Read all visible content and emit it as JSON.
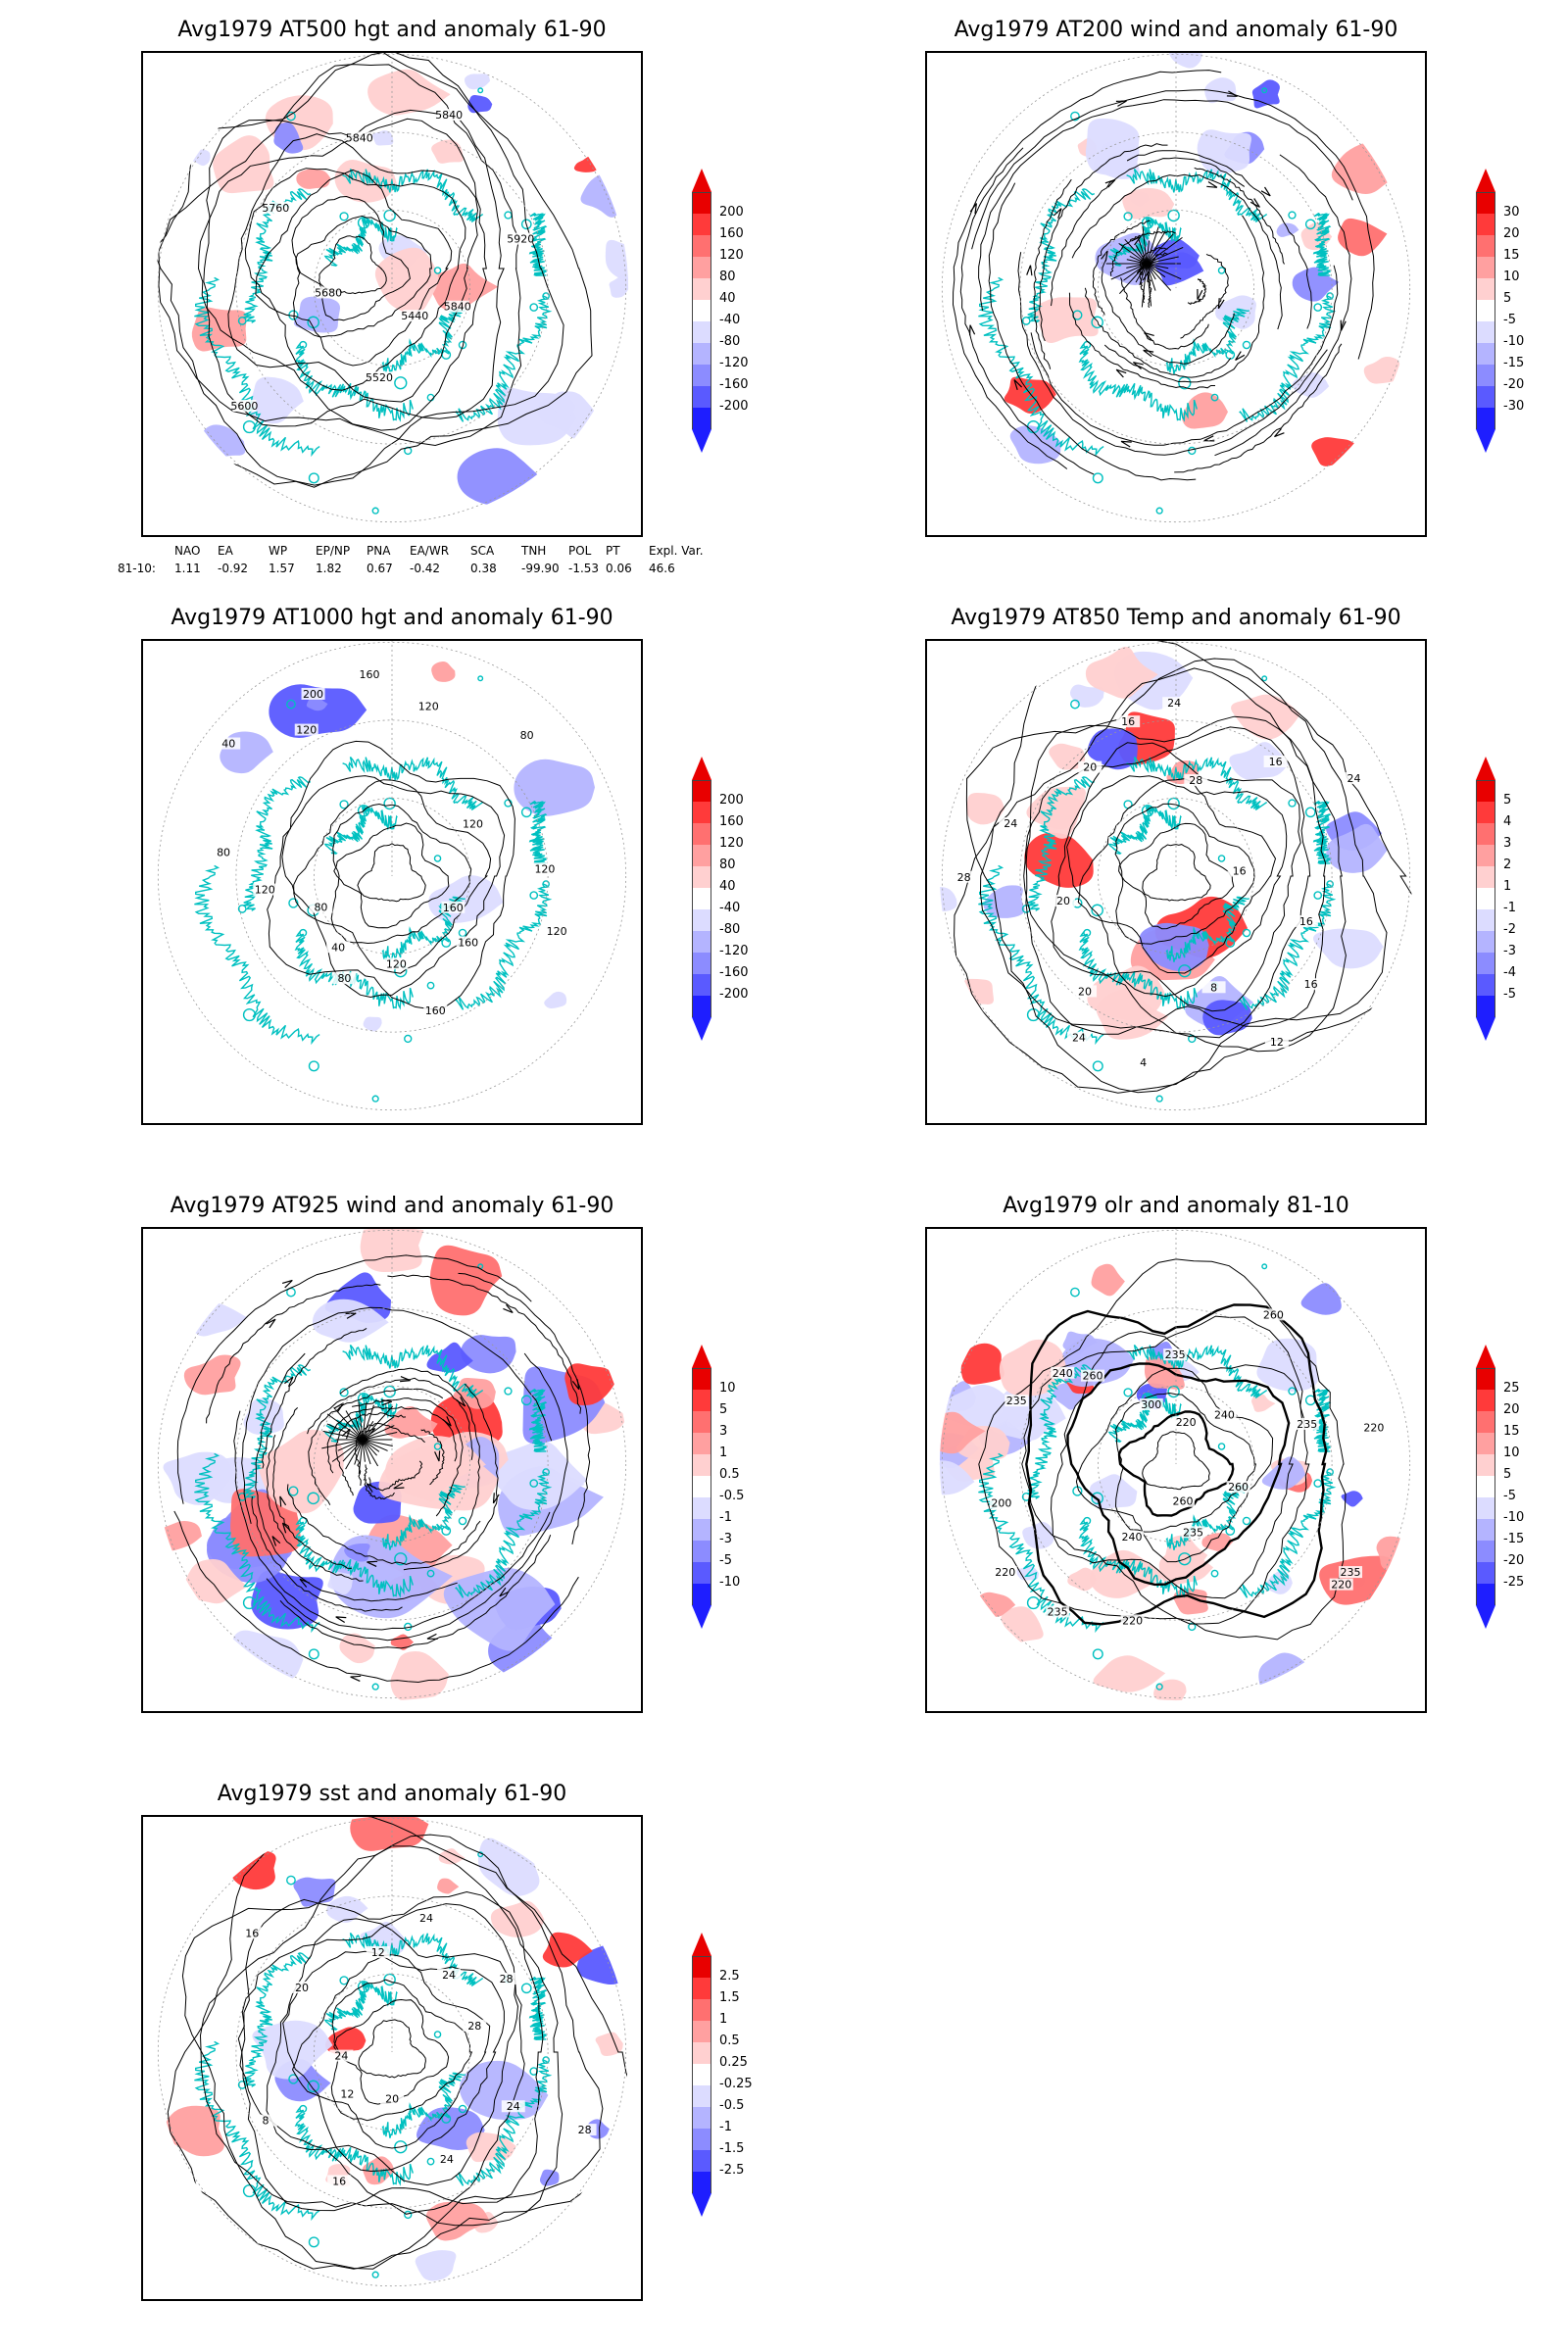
{
  "palette": {
    "coast": "#00c0c0",
    "contour": "#000000",
    "pos": [
      "#ffd0d0",
      "#ffa0a0",
      "#ff7070",
      "#ff3a3a",
      "#e80000"
    ],
    "neg": [
      "#dcdcff",
      "#b4b4ff",
      "#8c8cff",
      "#5a5aff",
      "#1e1eff"
    ]
  },
  "panels": [
    {
      "id": "z500",
      "title": "Avg1979 AT500 hgt and anomaly 61-90",
      "overlay": "contours",
      "contour_labels": [
        "5840",
        "5440",
        "5520",
        "5600",
        "5680",
        "5760",
        "5840",
        "5840",
        "5920"
      ],
      "colorbar": [
        "200",
        "160",
        "120",
        "80",
        "40",
        "-40",
        "-80",
        "-120",
        "-160",
        "-200"
      ]
    },
    {
      "id": "wind200",
      "title": "Avg1979 AT200 wind and anomaly 61-90",
      "overlay": "streamlines",
      "contour_labels": [],
      "colorbar": [
        "30",
        "20",
        "15",
        "10",
        "5",
        "-5",
        "-10",
        "-15",
        "-20",
        "-30"
      ]
    },
    {
      "id": "z1000",
      "title": "Avg1979 AT1000 hgt and anomaly 61-90",
      "overlay": "contours",
      "contour_labels": [
        "120",
        "160",
        "160",
        "160",
        "120",
        "80",
        "40",
        "80",
        "120",
        "80",
        "40",
        "120",
        "200",
        "160",
        "120",
        "80",
        "120",
        "120"
      ],
      "colorbar": [
        "200",
        "160",
        "120",
        "80",
        "40",
        "-40",
        "-80",
        "-120",
        "-160",
        "-200"
      ]
    },
    {
      "id": "t850",
      "title": "Avg1979 AT850 Temp and anomaly 61-90",
      "overlay": "contours",
      "contour_labels": [
        "16",
        "16",
        "12",
        "8",
        "4",
        "24",
        "20",
        "20",
        "28",
        "24",
        "20",
        "16",
        "24",
        "28",
        "16",
        "24",
        "16"
      ],
      "colorbar": [
        "5",
        "4",
        "3",
        "2",
        "1",
        "-1",
        "-2",
        "-3",
        "-4",
        "-5"
      ]
    },
    {
      "id": "wind925",
      "title": "Avg1979 AT925 wind and anomaly 61-90",
      "overlay": "streamlines",
      "contour_labels": [],
      "colorbar": [
        "10",
        "5",
        "3",
        "1",
        "0.5",
        "-0.5",
        "-1",
        "-3",
        "-5",
        "-10"
      ]
    },
    {
      "id": "olr",
      "title": "Avg1979 olr and anomaly 81-10",
      "overlay": "contours",
      "contour_labels": [
        "260",
        "235",
        "220",
        "235",
        "260",
        "220",
        "240",
        "235",
        "220",
        "200",
        "235",
        "240",
        "260",
        "300",
        "235",
        "220",
        "260",
        "240",
        "235",
        "220"
      ],
      "colorbar": [
        "25",
        "20",
        "15",
        "10",
        "5",
        "-5",
        "-10",
        "-15",
        "-20",
        "-25"
      ]
    },
    {
      "id": "sst",
      "title": "Avg1979 sst and anomaly 61-90",
      "overlay": "contours",
      "contour_labels": [
        "28",
        "24",
        "24",
        "20",
        "16",
        "12",
        "8",
        "24",
        "20",
        "16",
        "12",
        "24",
        "24",
        "28",
        "28"
      ],
      "colorbar": [
        "2.5",
        "1.5",
        "1",
        "0.5",
        "0.25",
        "-0.25",
        "-0.5",
        "-1",
        "-1.5",
        "-2.5"
      ]
    }
  ],
  "indices": {
    "headers": [
      "NAO",
      "EA",
      "WP",
      "EP/NP",
      "PNA",
      "EA/WR",
      "SCA",
      "TNH",
      "POL",
      "PT",
      "Expl. Var."
    ],
    "row_label": "81-10:",
    "values": [
      "1.11",
      "-0.92",
      "1.57",
      "1.82",
      "0.67",
      "-0.42",
      "0.38",
      "-99.90",
      "-1.53",
      "0.06",
      "46.6"
    ]
  }
}
